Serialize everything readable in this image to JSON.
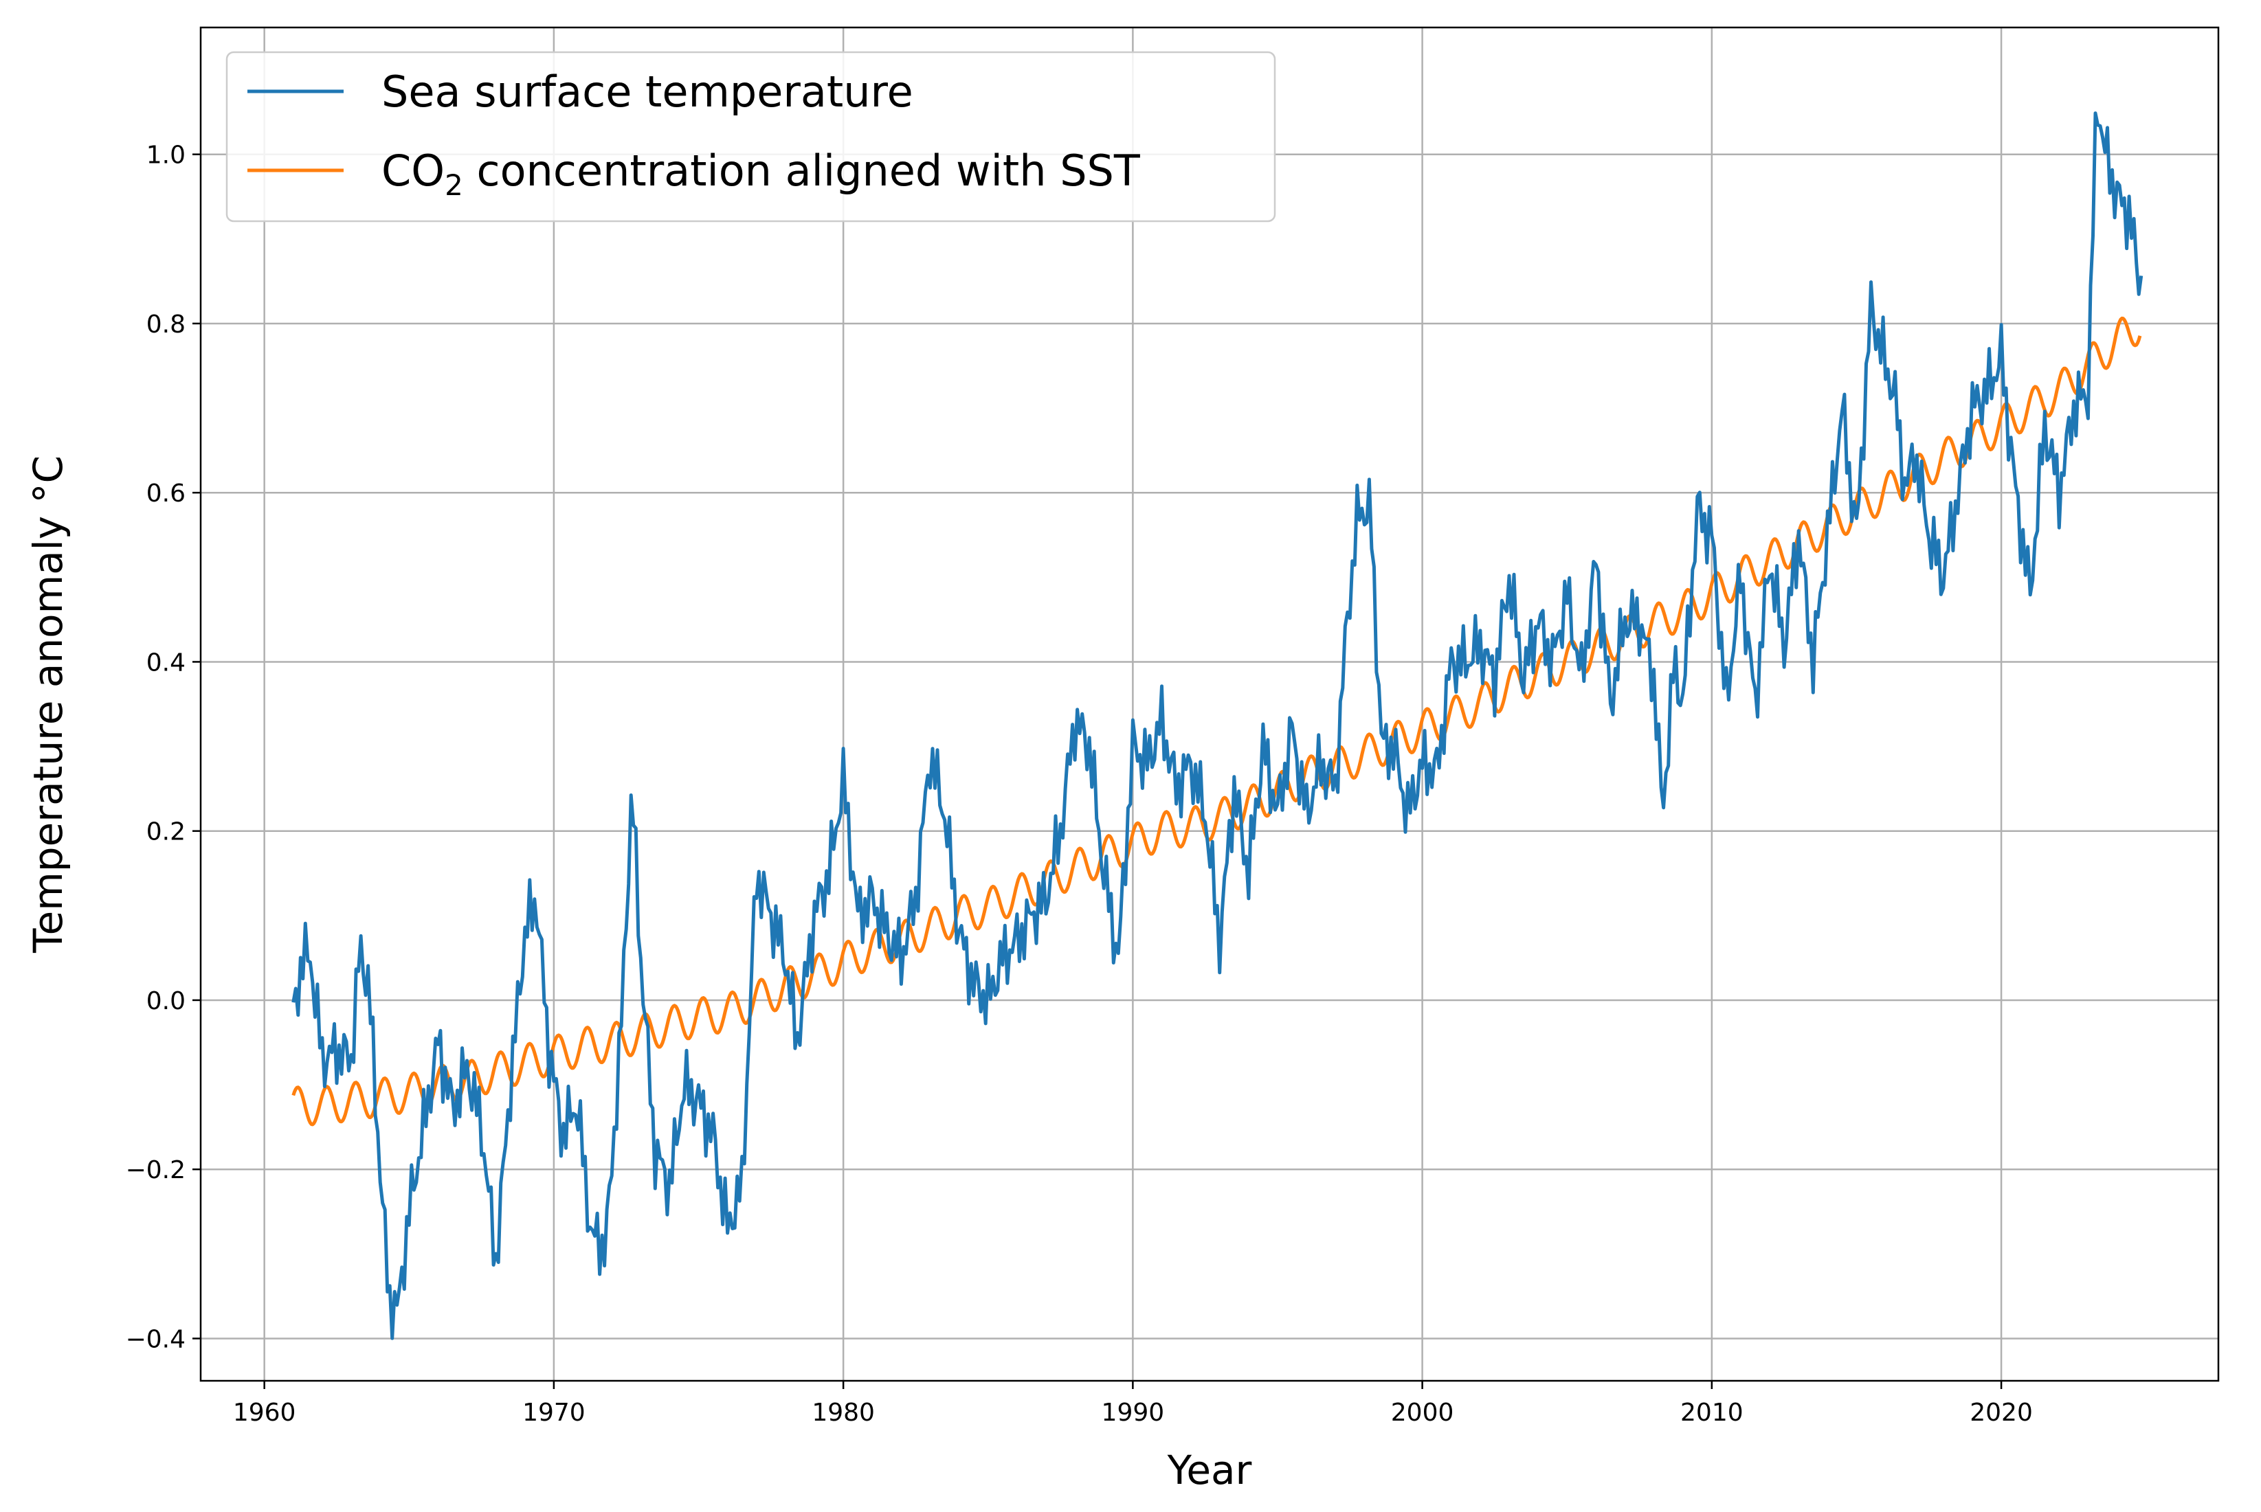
{
  "chart_data": {
    "type": "line",
    "title": "",
    "xlabel": "Year",
    "ylabel": "Temperature anomaly °C",
    "xlim": [
      1957.8,
      2027.5
    ],
    "ylim": [
      -0.45,
      1.15
    ],
    "xticks": [
      1960,
      1970,
      1980,
      1990,
      2000,
      2010,
      2020
    ],
    "xtick_labels": [
      "1960",
      "1970",
      "1980",
      "1990",
      "2000",
      "2010",
      "2020"
    ],
    "yticks": [
      -0.4,
      -0.2,
      0.0,
      0.2,
      0.4,
      0.6,
      0.8,
      1.0
    ],
    "ytick_labels": [
      "−0.4",
      "−0.2",
      "0.0",
      "0.2",
      "0.4",
      "0.6",
      "0.8",
      "1.0"
    ],
    "grid": true,
    "legend_position": "top-left",
    "legend": {
      "sst_label": "Sea surface temperature",
      "co2_prefix": "CO",
      "co2_subscript": "2",
      "co2_suffix": " concentration aligned with SST"
    },
    "series": [
      {
        "name": "Sea surface temperature",
        "color": "#1f77b4",
        "x": [
          1961.0,
          1961.3,
          1961.6,
          1962.0,
          1962.5,
          1963.0,
          1963.3,
          1963.6,
          1964.0,
          1964.3,
          1964.6,
          1965.0,
          1965.5,
          1966.0,
          1966.5,
          1967.0,
          1967.5,
          1968.0,
          1968.5,
          1969.0,
          1969.4,
          1969.8,
          1970.3,
          1970.8,
          1971.3,
          1971.8,
          1972.3,
          1972.7,
          1973.0,
          1973.5,
          1974.0,
          1974.5,
          1975.0,
          1975.5,
          1976.0,
          1976.5,
          1977.0,
          1977.5,
          1978.0,
          1978.4,
          1979.0,
          1979.5,
          1980.0,
          1980.5,
          1981.0,
          1981.5,
          1982.0,
          1982.5,
          1983.0,
          1983.5,
          1984.0,
          1984.5,
          1985.0,
          1985.5,
          1986.0,
          1986.5,
          1987.0,
          1987.5,
          1988.0,
          1988.5,
          1989.0,
          1989.5,
          1990.0,
          1990.5,
          1991.0,
          1991.5,
          1992.0,
          1992.5,
          1993.0,
          1993.5,
          1994.0,
          1994.5,
          1995.0,
          1995.5,
          1996.0,
          1996.5,
          1997.0,
          1997.4,
          1997.8,
          1998.2,
          1998.6,
          1999.0,
          1999.5,
          2000.0,
          2000.5,
          2001.0,
          2001.5,
          2002.0,
          2002.5,
          2003.0,
          2003.5,
          2004.0,
          2004.5,
          2005.0,
          2005.5,
          2006.0,
          2006.5,
          2007.0,
          2007.5,
          2008.0,
          2008.3,
          2008.7,
          2009.0,
          2009.5,
          2010.0,
          2010.5,
          2011.0,
          2011.5,
          2012.0,
          2012.5,
          2013.0,
          2013.5,
          2014.0,
          2014.5,
          2015.0,
          2015.5,
          2016.0,
          2016.3,
          2016.7,
          2017.0,
          2017.5,
          2018.0,
          2018.5,
          2019.0,
          2019.5,
          2020.0,
          2020.5,
          2021.0,
          2021.5,
          2022.0,
          2022.5,
          2023.0,
          2023.3,
          2023.6,
          2024.0,
          2024.4,
          2024.8
        ],
        "values": [
          -0.02,
          0.05,
          0.05,
          -0.07,
          -0.06,
          -0.07,
          0.06,
          0.02,
          -0.2,
          -0.35,
          -0.37,
          -0.25,
          -0.15,
          -0.05,
          -0.13,
          -0.08,
          -0.15,
          -0.31,
          -0.1,
          0.08,
          0.12,
          -0.05,
          -0.16,
          -0.12,
          -0.28,
          -0.29,
          -0.05,
          0.25,
          0.05,
          -0.18,
          -0.22,
          -0.1,
          -0.12,
          -0.16,
          -0.27,
          -0.22,
          0.15,
          0.1,
          0.05,
          -0.05,
          0.1,
          0.15,
          0.26,
          0.1,
          0.12,
          0.08,
          0.05,
          0.12,
          0.29,
          0.22,
          0.08,
          0.02,
          0.0,
          0.05,
          0.07,
          0.1,
          0.12,
          0.2,
          0.33,
          0.3,
          0.15,
          0.05,
          0.3,
          0.28,
          0.33,
          0.25,
          0.28,
          0.22,
          0.07,
          0.25,
          0.15,
          0.3,
          0.22,
          0.32,
          0.22,
          0.28,
          0.25,
          0.45,
          0.58,
          0.58,
          0.3,
          0.3,
          0.22,
          0.28,
          0.27,
          0.4,
          0.4,
          0.42,
          0.38,
          0.5,
          0.38,
          0.45,
          0.4,
          0.48,
          0.38,
          0.52,
          0.35,
          0.45,
          0.45,
          0.38,
          0.22,
          0.4,
          0.35,
          0.58,
          0.55,
          0.35,
          0.5,
          0.35,
          0.52,
          0.42,
          0.55,
          0.4,
          0.55,
          0.7,
          0.55,
          0.82,
          0.75,
          0.72,
          0.6,
          0.65,
          0.55,
          0.5,
          0.6,
          0.7,
          0.72,
          0.76,
          0.6,
          0.48,
          0.68,
          0.6,
          0.7,
          0.72,
          1.07,
          1.0,
          0.95,
          0.93,
          0.85
        ]
      },
      {
        "name": "CO₂ concentration aligned with SST",
        "color": "#ff7f0e",
        "x": [
          1961.0,
          1962.0,
          1963.0,
          1964.0,
          1965.0,
          1966.0,
          1967.0,
          1968.0,
          1969.0,
          1970.0,
          1971.0,
          1972.0,
          1973.0,
          1974.0,
          1975.0,
          1976.0,
          1977.0,
          1978.0,
          1979.0,
          1980.0,
          1981.0,
          1982.0,
          1983.0,
          1984.0,
          1985.0,
          1986.0,
          1987.0,
          1988.0,
          1989.0,
          1990.0,
          1991.0,
          1992.0,
          1993.0,
          1994.0,
          1995.0,
          1996.0,
          1997.0,
          1998.0,
          1999.0,
          2000.0,
          2001.0,
          2002.0,
          2003.0,
          2004.0,
          2005.0,
          2006.0,
          2007.0,
          2008.0,
          2009.0,
          2010.0,
          2011.0,
          2012.0,
          2013.0,
          2014.0,
          2015.0,
          2016.0,
          2017.0,
          2018.0,
          2019.0,
          2020.0,
          2021.0,
          2022.0,
          2023.0,
          2024.0,
          2024.8
        ],
        "values": [
          -0.125,
          -0.125,
          -0.12,
          -0.115,
          -0.11,
          -0.1,
          -0.095,
          -0.085,
          -0.075,
          -0.065,
          -0.055,
          -0.05,
          -0.04,
          -0.03,
          -0.02,
          -0.015,
          0.0,
          0.015,
          0.03,
          0.045,
          0.06,
          0.07,
          0.085,
          0.1,
          0.11,
          0.125,
          0.14,
          0.155,
          0.17,
          0.185,
          0.2,
          0.205,
          0.215,
          0.23,
          0.245,
          0.265,
          0.275,
          0.29,
          0.305,
          0.32,
          0.335,
          0.35,
          0.37,
          0.385,
          0.4,
          0.415,
          0.43,
          0.445,
          0.46,
          0.48,
          0.5,
          0.52,
          0.54,
          0.56,
          0.58,
          0.6,
          0.62,
          0.64,
          0.66,
          0.68,
          0.7,
          0.72,
          0.75,
          0.78,
          0.8
        ],
        "seasonal_amplitude": 0.022
      }
    ]
  }
}
